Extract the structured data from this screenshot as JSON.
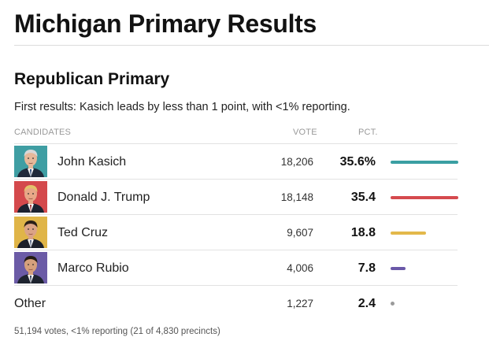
{
  "page": {
    "title": "Michigan Primary Results"
  },
  "race": {
    "title": "Republican Primary",
    "summary": "First results: Kasich leads by less than 1 point, with <1% reporting."
  },
  "columns": {
    "candidates": "CANDIDATES",
    "vote": "VOTE",
    "pct": "PCT."
  },
  "candidates": [
    {
      "name": "John Kasich",
      "vote": "18,206",
      "pct": "35.6%",
      "pct_value": 35.6,
      "color": "#3a9fa2",
      "photo_bg": "#3f9ea3",
      "skin": "#e6b89a",
      "hair": "#d8d8d8",
      "suit": "#202a3a",
      "tie": "#1d3f6e"
    },
    {
      "name": "Donald J. Trump",
      "vote": "18,148",
      "pct": "35.4",
      "pct_value": 35.4,
      "color": "#d54a4e",
      "photo_bg": "#d4494c",
      "skin": "#e8a887",
      "hair": "#e3c36a",
      "suit": "#1c2230",
      "tie": "#a32a2f"
    },
    {
      "name": "Ted Cruz",
      "vote": "9,607",
      "pct": "18.8",
      "pct_value": 18.8,
      "color": "#e3b84a",
      "photo_bg": "#e0b548",
      "skin": "#dba386",
      "hair": "#2b2018",
      "suit": "#1b1f2a",
      "tie": "#4b5a7a"
    },
    {
      "name": "Marco Rubio",
      "vote": "4,006",
      "pct": "7.8",
      "pct_value": 7.8,
      "color": "#6a58a8",
      "photo_bg": "#6b5ba6",
      "skin": "#d6a07c",
      "hair": "#241c17",
      "suit": "#1e2430",
      "tie": "#2a3550"
    }
  ],
  "other": {
    "name": "Other",
    "vote": "1,227",
    "pct": "2.4",
    "pct_value": 2.4,
    "color": "#9a9a9a"
  },
  "footer": "51,194 votes, <1% reporting (21 of 4,830 precincts)"
}
